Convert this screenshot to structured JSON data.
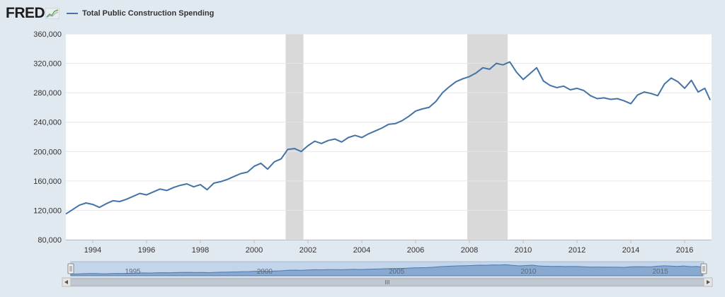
{
  "brand": {
    "logo_text": "FRED"
  },
  "chart_data": {
    "type": "line",
    "title": "",
    "xlabel": "",
    "ylabel": "",
    "series": [
      {
        "name": "Total Public Construction Spending",
        "color": "#4572a7",
        "x": [
          1993.0,
          1993.25,
          1993.5,
          1993.75,
          1994.0,
          1994.25,
          1994.5,
          1994.75,
          1995.0,
          1995.25,
          1995.5,
          1995.75,
          1996.0,
          1996.25,
          1996.5,
          1996.75,
          1997.0,
          1997.25,
          1997.5,
          1997.75,
          1998.0,
          1998.25,
          1998.5,
          1998.75,
          1999.0,
          1999.25,
          1999.5,
          1999.75,
          2000.0,
          2000.25,
          2000.5,
          2000.75,
          2001.0,
          2001.25,
          2001.5,
          2001.75,
          2002.0,
          2002.25,
          2002.5,
          2002.75,
          2003.0,
          2003.25,
          2003.5,
          2003.75,
          2004.0,
          2004.25,
          2004.5,
          2004.75,
          2005.0,
          2005.25,
          2005.5,
          2005.75,
          2006.0,
          2006.25,
          2006.5,
          2006.75,
          2007.0,
          2007.25,
          2007.5,
          2007.75,
          2008.0,
          2008.25,
          2008.5,
          2008.75,
          2009.0,
          2009.25,
          2009.5,
          2009.75,
          2010.0,
          2010.25,
          2010.5,
          2010.75,
          2011.0,
          2011.25,
          2011.5,
          2011.75,
          2012.0,
          2012.25,
          2012.5,
          2012.75,
          2013.0,
          2013.25,
          2013.5,
          2013.75,
          2014.0,
          2014.25,
          2014.5,
          2014.75,
          2015.0,
          2015.25,
          2015.5,
          2015.75,
          2016.0,
          2016.25,
          2016.5,
          2016.75,
          2016.95
        ],
        "values": [
          115000,
          121000,
          127000,
          130000,
          128000,
          124000,
          129000,
          133000,
          132000,
          135000,
          139000,
          143000,
          141000,
          145000,
          149000,
          147000,
          151000,
          154000,
          156000,
          152000,
          155000,
          148000,
          157000,
          159000,
          162000,
          166000,
          170000,
          172000,
          180000,
          184000,
          176000,
          186000,
          190000,
          203000,
          204000,
          200000,
          208000,
          214000,
          211000,
          215000,
          217000,
          213000,
          219000,
          222000,
          219000,
          224000,
          228000,
          232000,
          237000,
          238000,
          242000,
          248000,
          255000,
          258000,
          260000,
          268000,
          280000,
          288000,
          295000,
          299000,
          302000,
          307000,
          314000,
          312000,
          320000,
          318000,
          322000,
          308000,
          298000,
          306000,
          314000,
          296000,
          290000,
          287000,
          289000,
          284000,
          286000,
          283000,
          276000,
          272000,
          273000,
          271000,
          272000,
          269000,
          265000,
          277000,
          281000,
          279000,
          276000,
          292000,
          300000,
          295000,
          286000,
          297000,
          281000,
          286000,
          270000
        ]
      }
    ],
    "ylim": [
      80000,
      360000
    ],
    "xlim": [
      1993.0,
      2017.0
    ],
    "yticks": [
      "80,000",
      "120,000",
      "160,000",
      "200,000",
      "240,000",
      "280,000",
      "320,000",
      "360,000"
    ],
    "xticks": [
      "1994",
      "1996",
      "1998",
      "2000",
      "2002",
      "2004",
      "2006",
      "2008",
      "2010",
      "2012",
      "2014",
      "2016"
    ],
    "recessions": [
      [
        2001.17,
        2001.83
      ],
      [
        2007.92,
        2009.42
      ]
    ],
    "grid": "horizontal",
    "legend_position": "top-left",
    "navigator": {
      "labels": [
        "1995",
        "2000",
        "2005",
        "2010",
        "2015"
      ],
      "scroll_grip": "III"
    },
    "colors": {
      "line": "#4572a7",
      "recession": "#d9d9d9",
      "background": "#e1e9f0",
      "plot": "#ffffff"
    }
  }
}
